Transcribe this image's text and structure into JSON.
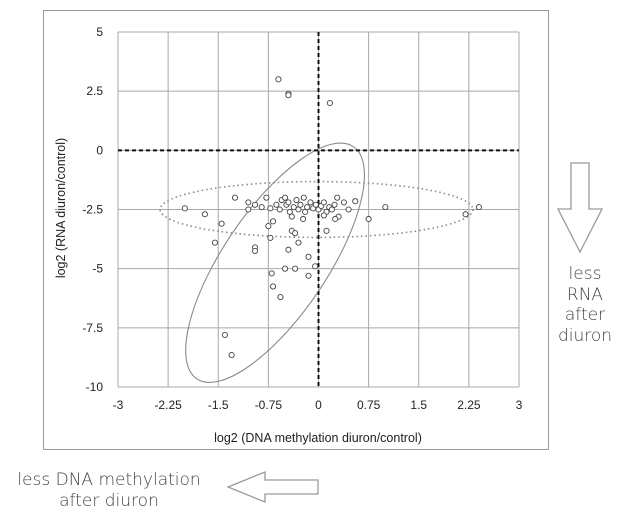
{
  "chart_data": {
    "type": "scatter",
    "title": "",
    "xlabel": "log2 (DNA methylation diuron/control)",
    "ylabel": "log2 (RNA diuron/control)",
    "xlim": [
      -3,
      3
    ],
    "ylim": [
      -10,
      5
    ],
    "x_ticks": [
      "-3",
      "-2.25",
      "-1.5",
      "-0.75",
      "0",
      "0.75",
      "1.5",
      "2.25",
      "3"
    ],
    "y_ticks": [
      "5",
      "2.5",
      "0",
      "-2.5",
      "-5",
      "-7.5",
      "-10"
    ],
    "grid": true,
    "reference_lines": [
      {
        "axis": "x",
        "value": 0,
        "style": "dashed"
      },
      {
        "axis": "y",
        "value": 0,
        "style": "dashed"
      }
    ],
    "ellipses": [
      {
        "center": [
          -0.03,
          -2.5
        ],
        "semi_axes": [
          2.34,
          1.18
        ],
        "angle_deg": 0,
        "style": "dotted"
      },
      {
        "center": [
          -0.65,
          -4.75
        ],
        "semi_axes": [
          1.73,
          5.88
        ],
        "angle_deg": 0,
        "rotation_deg": 34,
        "style": "solid"
      }
    ],
    "points": [
      {
        "x": -0.6,
        "y": 3.0
      },
      {
        "x": -0.45,
        "y": 2.4
      },
      {
        "x": -0.45,
        "y": 2.33
      },
      {
        "x": 0.17,
        "y": 2.0
      },
      {
        "x": -2.0,
        "y": -2.45
      },
      {
        "x": -1.7,
        "y": -2.7
      },
      {
        "x": -1.55,
        "y": -3.9
      },
      {
        "x": -1.45,
        "y": -3.1
      },
      {
        "x": -1.25,
        "y": -2.0
      },
      {
        "x": -1.05,
        "y": -2.2
      },
      {
        "x": -1.05,
        "y": -2.5
      },
      {
        "x": -0.95,
        "y": -2.3
      },
      {
        "x": -0.85,
        "y": -2.4
      },
      {
        "x": -0.78,
        "y": -2.0
      },
      {
        "x": -0.72,
        "y": -2.45
      },
      {
        "x": -0.68,
        "y": -3.0
      },
      {
        "x": -0.63,
        "y": -2.3
      },
      {
        "x": -0.58,
        "y": -2.5
      },
      {
        "x": -0.55,
        "y": -2.1
      },
      {
        "x": -0.5,
        "y": -2.0
      },
      {
        "x": -0.48,
        "y": -2.3
      },
      {
        "x": -0.45,
        "y": -2.2
      },
      {
        "x": -0.43,
        "y": -2.6
      },
      {
        "x": -0.4,
        "y": -2.8
      },
      {
        "x": -0.37,
        "y": -2.4
      },
      {
        "x": -0.33,
        "y": -2.1
      },
      {
        "x": -0.3,
        "y": -2.5
      },
      {
        "x": -0.27,
        "y": -2.3
      },
      {
        "x": -0.22,
        "y": -2.0
      },
      {
        "x": -0.2,
        "y": -2.6
      },
      {
        "x": -0.17,
        "y": -2.4
      },
      {
        "x": -0.12,
        "y": -2.2
      },
      {
        "x": -0.08,
        "y": -2.45
      },
      {
        "x": -0.04,
        "y": -2.3
      },
      {
        "x": 0.0,
        "y": -2.5
      },
      {
        "x": 0.04,
        "y": -2.35
      },
      {
        "x": 0.08,
        "y": -2.2
      },
      {
        "x": 0.12,
        "y": -2.6
      },
      {
        "x": 0.16,
        "y": -2.4
      },
      {
        "x": 0.2,
        "y": -2.5
      },
      {
        "x": 0.24,
        "y": -2.3
      },
      {
        "x": 0.28,
        "y": -2.0
      },
      {
        "x": 0.3,
        "y": -2.8
      },
      {
        "x": 0.38,
        "y": -2.2
      },
      {
        "x": -0.95,
        "y": -4.1
      },
      {
        "x": -0.95,
        "y": -4.25
      },
      {
        "x": -0.75,
        "y": -3.2
      },
      {
        "x": -0.72,
        "y": -3.7
      },
      {
        "x": -0.7,
        "y": -5.2
      },
      {
        "x": -0.68,
        "y": -5.75
      },
      {
        "x": -0.57,
        "y": -6.2
      },
      {
        "x": -0.5,
        "y": -5.0
      },
      {
        "x": -0.45,
        "y": -4.2
      },
      {
        "x": -0.4,
        "y": -3.4
      },
      {
        "x": -0.35,
        "y": -3.5
      },
      {
        "x": -0.3,
        "y": -3.9
      },
      {
        "x": -0.35,
        "y": -5.0
      },
      {
        "x": -0.23,
        "y": -2.9
      },
      {
        "x": -0.15,
        "y": -4.5
      },
      {
        "x": -0.15,
        "y": -5.3
      },
      {
        "x": -0.05,
        "y": -4.9
      },
      {
        "x": 0.08,
        "y": -2.75
      },
      {
        "x": 0.12,
        "y": -3.4
      },
      {
        "x": 0.25,
        "y": -2.9
      },
      {
        "x": 0.45,
        "y": -2.5
      },
      {
        "x": 0.55,
        "y": -2.15
      },
      {
        "x": 0.75,
        "y": -2.9
      },
      {
        "x": 1.0,
        "y": -2.4
      },
      {
        "x": -1.4,
        "y": -7.8
      },
      {
        "x": -1.3,
        "y": -8.65
      },
      {
        "x": 2.2,
        "y": -2.7
      },
      {
        "x": 2.4,
        "y": -2.4
      }
    ]
  },
  "annotations": {
    "right_arrow_label": "less RNA after diuron",
    "bottom_arrow_label": "less DNA methylation after diuron"
  }
}
